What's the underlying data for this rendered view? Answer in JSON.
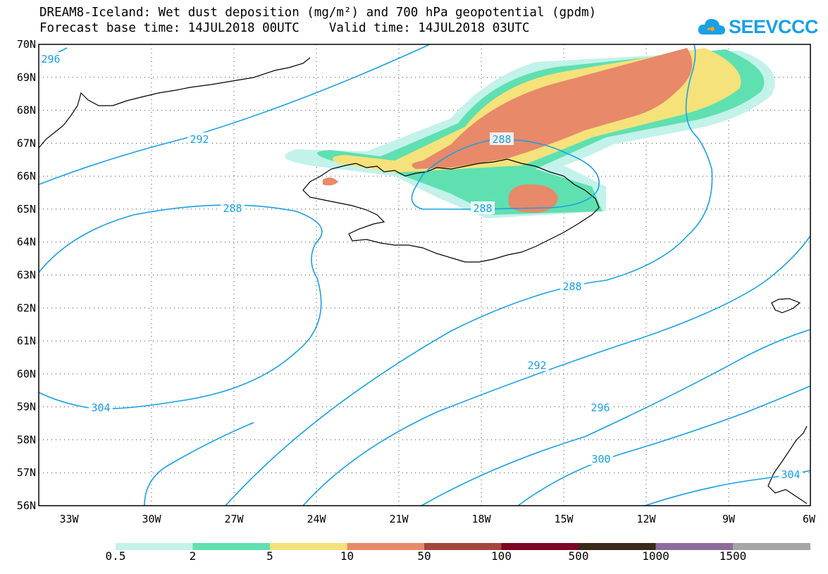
{
  "header": {
    "title_line1": "DREAM8-Iceland: Wet dust deposition (mg/m²) and 700 hPa geopotential (gpdm)",
    "title_line2": "Forecast base time: 14JUL2018 00UTC    Valid time: 14JUL2018 03UTC",
    "logo_text": "SEEVCCC"
  },
  "map": {
    "lat_labels": [
      "70N",
      "69N",
      "68N",
      "67N",
      "66N",
      "65N",
      "64N",
      "63N",
      "62N",
      "61N",
      "60N",
      "59N",
      "58N",
      "57N",
      "56N"
    ],
    "lon_labels": [
      "33W",
      "30W",
      "27W",
      "24W",
      "21W",
      "18W",
      "15W",
      "12W",
      "9W",
      "6W"
    ],
    "contour_labels": [
      "296",
      "292",
      "288",
      "288",
      "288",
      "288",
      "292",
      "296",
      "300",
      "304",
      "304"
    ],
    "contour_color": "#1aa0e6"
  },
  "colorbar": {
    "labels": [
      "0.5",
      "2",
      "5",
      "10",
      "50",
      "100",
      "500",
      "1000",
      "1500"
    ],
    "colors": [
      "#c2f2ea",
      "#5fe0b0",
      "#f5e27a",
      "#e8896a",
      "#a3453e",
      "#7d0528",
      "#3a2a1a",
      "#8c6c9c",
      "#a5a5a5"
    ]
  }
}
